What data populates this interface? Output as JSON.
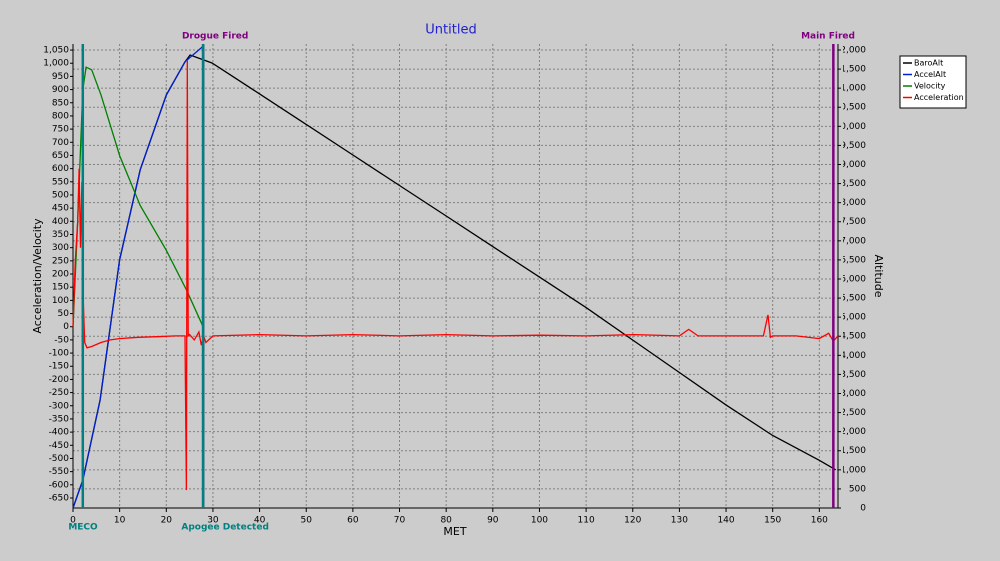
{
  "chart_data": {
    "type": "line",
    "title": "Untitled",
    "x_label": "MET",
    "y_label": "Acceleration/Velocity",
    "y2_label": "Altitude",
    "xlim": [
      0,
      164
    ],
    "xticks": [
      0,
      10,
      20,
      30,
      40,
      50,
      60,
      70,
      80,
      90,
      100,
      110,
      120,
      130,
      140,
      150,
      160
    ],
    "ylim": [
      -688,
      1073
    ],
    "yticks": [
      -650,
      -600,
      -550,
      -500,
      -450,
      -400,
      -350,
      -300,
      -250,
      -200,
      -150,
      -100,
      -50,
      0,
      50,
      100,
      150,
      200,
      250,
      300,
      350,
      400,
      450,
      500,
      550,
      600,
      650,
      700,
      750,
      800,
      850,
      900,
      950,
      {
        "value": 1000,
        "label": "1,000"
      },
      {
        "value": 1050,
        "label": "1,050"
      }
    ],
    "y2lim": [
      0,
      12157
    ],
    "y2ticks": [
      0,
      500,
      {
        "value": 1000,
        "label": "1,000"
      },
      {
        "value": 1500,
        "label": "1,500"
      },
      {
        "value": 2000,
        "label": "2,000"
      },
      {
        "value": 2500,
        "label": "2,500"
      },
      {
        "value": 3000,
        "label": "3,000"
      },
      {
        "value": 3500,
        "label": "3,500"
      },
      {
        "value": 4000,
        "label": "4,000"
      },
      {
        "value": 4500,
        "label": "4,500"
      },
      {
        "value": 5000,
        "label": "5,000"
      },
      {
        "value": 5500,
        "label": "5,500"
      },
      {
        "value": 6000,
        "label": "6,000"
      },
      {
        "value": 6500,
        "label": "6,500"
      },
      {
        "value": 7000,
        "label": "7,000"
      },
      {
        "value": 7500,
        "label": "7,500"
      },
      {
        "value": 8000,
        "label": "8,000"
      },
      {
        "value": 8500,
        "label": "8,500"
      },
      {
        "value": 9000,
        "label": "9,000"
      },
      {
        "value": 9500,
        "label": "9,500"
      },
      {
        "value": 10000,
        "label": "10,000"
      },
      {
        "value": 10500,
        "label": "10,500"
      },
      {
        "value": 11000,
        "label": "11,000"
      },
      {
        "value": 11500,
        "label": "11,500"
      },
      {
        "value": 12000,
        "label": "12,000"
      }
    ],
    "grid": true,
    "legend": "right",
    "series": [
      {
        "name": "BaroAlt",
        "color": "#000000",
        "axis": "y2",
        "x": [
          0,
          2.1,
          5.8,
          10,
          14.4,
          20,
          24,
          25.1,
          29.8,
          40,
          50,
          60,
          70,
          80,
          90,
          100,
          110,
          120,
          130,
          140,
          150,
          160,
          163.5
        ],
        "values": [
          0,
          730,
          2830,
          6500,
          8860,
          10820,
          11690,
          11870,
          11660,
          10850,
          10050,
          9250,
          8450,
          7650,
          6850,
          6050,
          5250,
          4400,
          3550,
          2700,
          1900,
          1250,
          1000
        ]
      },
      {
        "name": "AccelAlt",
        "color": "#0020d0",
        "axis": "y2",
        "x": [
          0,
          2.1,
          5.8,
          10,
          14.4,
          20,
          24,
          27.9
        ],
        "values": [
          0,
          730,
          2830,
          6500,
          8860,
          10820,
          11690,
          12100
        ]
      },
      {
        "name": "Velocity",
        "color": "#008000",
        "axis": "y",
        "x": [
          0,
          1,
          2.1,
          2.8,
          4,
          6,
          10,
          14.4,
          20,
          24.3,
          27.9
        ],
        "values": [
          0,
          400,
          900,
          985,
          975,
          880,
          650,
          460,
          290,
          140,
          0
        ]
      },
      {
        "name": "Acceleration",
        "color": "#ff0000",
        "axis": "y",
        "x": [
          0,
          0.5,
          1,
          1.3,
          1.6,
          1.9,
          2.2,
          2.5,
          3,
          4,
          6,
          8,
          10,
          14,
          18,
          22,
          24,
          24.3,
          24.5,
          24.7,
          25,
          26,
          27,
          27.5,
          28,
          28.5,
          30,
          40,
          50,
          60,
          70,
          80,
          90,
          100,
          110,
          120,
          130,
          132,
          134,
          140,
          148,
          149,
          149.5,
          150,
          155,
          160,
          162,
          163,
          164
        ],
        "values": [
          0,
          250,
          400,
          600,
          300,
          550,
          100,
          -60,
          -80,
          -75,
          -60,
          -50,
          -45,
          -40,
          -38,
          -35,
          -35,
          -620,
          1010,
          -35,
          -30,
          -50,
          -20,
          -70,
          -35,
          -60,
          -35,
          -30,
          -35,
          -30,
          -35,
          -30,
          -35,
          -32,
          -35,
          -30,
          -35,
          -10,
          -35,
          -35,
          -35,
          45,
          -40,
          -35,
          -35,
          -45,
          -25,
          -55,
          -35
        ]
      }
    ],
    "events": [
      {
        "label": "MECO",
        "x": 2.1,
        "color": "#008080",
        "position": "bottom"
      },
      {
        "label": "Drogue Fired",
        "x": 27.9,
        "color": "#800080",
        "position": "top"
      },
      {
        "label": "Apogee Detected",
        "x": 27.9,
        "color": "#008080",
        "position": "bottom"
      },
      {
        "label": "Main Fired",
        "x": 163,
        "color": "#800080",
        "position": "top"
      }
    ]
  }
}
